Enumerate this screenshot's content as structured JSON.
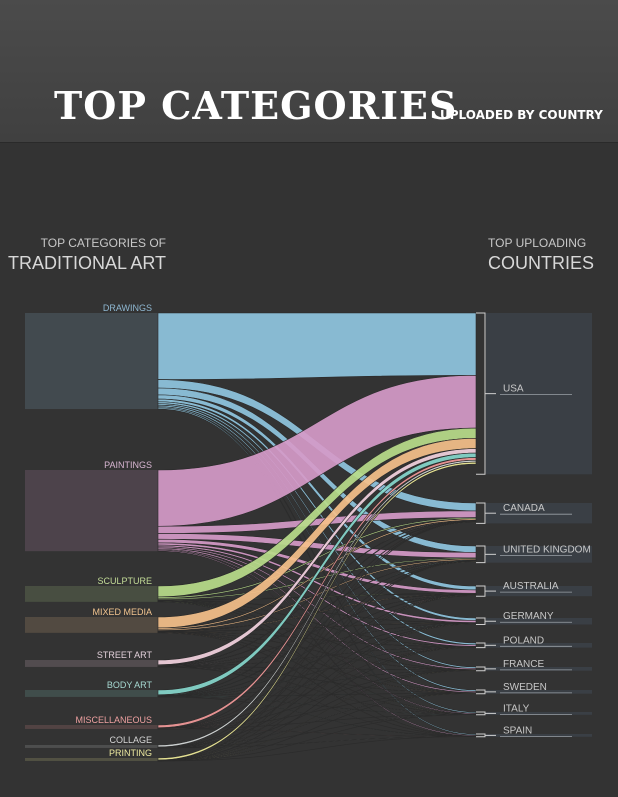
{
  "header": {
    "title": "TOP CATEGORIES",
    "subtitle": "UPLOADED BY COUNTRY"
  },
  "left_heading": {
    "small": "TOP CATEGORIES OF",
    "big": "TRADITIONAL ART"
  },
  "right_heading": {
    "small": "TOP UPLOADING",
    "big": "COUNTRIES"
  },
  "categories": [
    {
      "label": "DRAWINGS",
      "color": "#8fc5e0",
      "label_color": "#8fb8d2",
      "value": 97
    },
    {
      "label": "PAINTINGS",
      "color": "#d59ac8",
      "label_color": "#d8b6d2",
      "value": 82
    },
    {
      "label": "SCULPTURE",
      "color": "#b9dc8a",
      "label_color": "#c4dd98",
      "value": 16
    },
    {
      "label": "MIXED MEDIA",
      "color": "#f5c08a",
      "label_color": "#f2c48f",
      "value": 16
    },
    {
      "label": "STREET ART",
      "color": "#f3d2df",
      "label_color": "#e2d0da",
      "value": 7
    },
    {
      "label": "BODY ART",
      "color": "#86d7cc",
      "label_color": "#a6d9d2",
      "value": 7
    },
    {
      "label": "MISCELLANEOUS",
      "color": "#f49a9a",
      "label_color": "#eea0a0",
      "value": 4
    },
    {
      "label": "COLLAGE",
      "color": "#d8dcdc",
      "label_color": "#d6d6d6",
      "value": 3
    },
    {
      "label": "PRINTING",
      "color": "#f3ef9a",
      "label_color": "#eeeaa0",
      "value": 3
    }
  ],
  "countries": [
    {
      "label": "USA",
      "value": 174
    },
    {
      "label": "CANADA",
      "value": 22
    },
    {
      "label": "UNITED KINGDOM",
      "value": 18
    },
    {
      "label": "AUSTRALIA",
      "value": 11
    },
    {
      "label": "GERMANY",
      "value": 7
    },
    {
      "label": "POLAND",
      "value": 5
    },
    {
      "label": "FRANCE",
      "value": 4
    },
    {
      "label": "SWEDEN",
      "value": 4
    },
    {
      "label": "ITALY",
      "value": 3
    },
    {
      "label": "SPAIN",
      "value": 3
    }
  ],
  "colors": {
    "background": "#333333",
    "header": "#444444",
    "label_text": "#c8c8c8"
  }
}
